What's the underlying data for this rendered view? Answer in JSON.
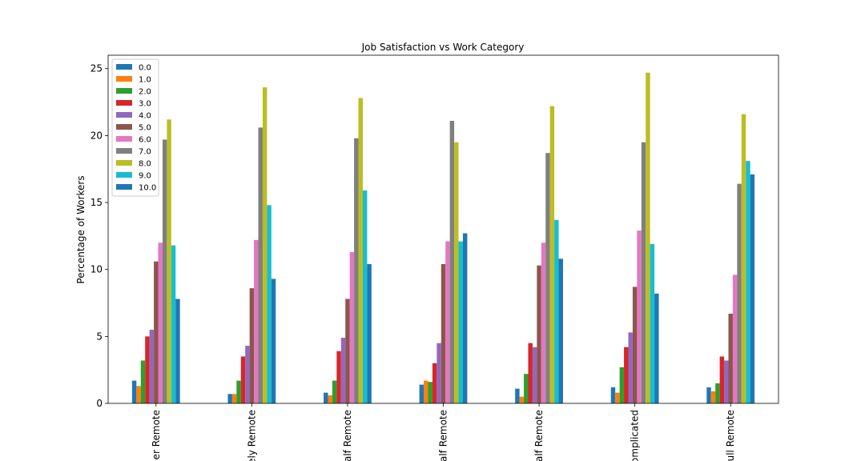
{
  "chart_data": {
    "type": "bar",
    "title": "Job Satisfaction vs Work Category",
    "xlabel": "",
    "ylabel": "Percentage of Workers",
    "ylim": [
      0,
      26
    ],
    "yticks": [
      0,
      5,
      10,
      15,
      20,
      25
    ],
    "grid": false,
    "legend_position": "top-left",
    "categories": [
      "Never Remote",
      "Rarely Remote",
      "Less than half Remote",
      "About half Remote",
      "More than half Remote",
      "It's complicated",
      "Full Remote"
    ],
    "category_labels_visible": [
      "er Remote",
      "ely Remote",
      "alf Remote",
      "alf Remote",
      "alf Remote",
      "omplicated",
      "ull Remote"
    ],
    "series": [
      {
        "name": "0.0",
        "color": "#1f77b4",
        "values": [
          1.7,
          0.7,
          0.8,
          1.4,
          1.1,
          1.2,
          1.2
        ]
      },
      {
        "name": "1.0",
        "color": "#ff7f0e",
        "values": [
          1.3,
          0.7,
          0.6,
          1.7,
          0.5,
          0.8,
          0.9
        ]
      },
      {
        "name": "2.0",
        "color": "#2ca02c",
        "values": [
          3.2,
          1.7,
          1.7,
          1.6,
          2.2,
          2.7,
          1.5
        ]
      },
      {
        "name": "3.0",
        "color": "#d62728",
        "values": [
          5.0,
          3.5,
          3.9,
          3.0,
          4.5,
          4.2,
          3.5
        ]
      },
      {
        "name": "4.0",
        "color": "#9467bd",
        "values": [
          5.5,
          4.3,
          4.9,
          4.5,
          4.2,
          5.3,
          3.2
        ]
      },
      {
        "name": "5.0",
        "color": "#8c564b",
        "values": [
          10.6,
          8.6,
          7.8,
          10.4,
          10.3,
          8.7,
          6.7
        ]
      },
      {
        "name": "6.0",
        "color": "#e377c2",
        "values": [
          12.0,
          12.2,
          11.3,
          12.1,
          12.0,
          12.9,
          9.6
        ]
      },
      {
        "name": "7.0",
        "color": "#7f7f7f",
        "values": [
          19.7,
          20.6,
          19.8,
          21.1,
          18.7,
          19.5,
          16.4
        ]
      },
      {
        "name": "8.0",
        "color": "#bcbd22",
        "values": [
          21.2,
          23.6,
          22.8,
          19.5,
          22.2,
          24.7,
          21.6
        ]
      },
      {
        "name": "9.0",
        "color": "#17becf",
        "values": [
          11.8,
          14.8,
          15.9,
          12.1,
          13.7,
          11.9,
          18.1
        ]
      },
      {
        "name": "10.0",
        "color": "#1f77b4",
        "values": [
          7.8,
          9.3,
          10.4,
          12.7,
          10.8,
          8.2,
          17.1
        ]
      }
    ]
  }
}
